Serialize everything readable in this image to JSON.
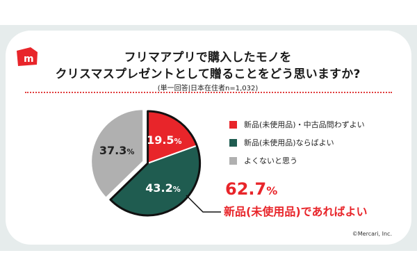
{
  "title_line1": "フリマアプリで購入したモノを",
  "title_line2": "クリスマスプレゼントとして贈ることをどう思いますか?",
  "note": "(単一回答|日本在住者n=1,032)",
  "copyright": "©Mercari, Inc.",
  "highlight": {
    "value": "62.7",
    "unit": "%",
    "text": "新品(未使用品)であればよい"
  },
  "colors": {
    "red": "#e8252a",
    "green": "#1f5c50",
    "gray": "#b0b0b0",
    "band": "#e6ecec",
    "accent": "#e8252a"
  },
  "logo_icon": "mercari-logo-icon",
  "chart_data": {
    "type": "pie",
    "slices": [
      {
        "label": "新品(未使用品)・中古品問わずよい",
        "value": 19.5,
        "display": "19.5",
        "unit": "%",
        "color": "#e8252a",
        "exploded": true
      },
      {
        "label": "新品(未使用品)ならばよい",
        "value": 43.2,
        "display": "43.2",
        "unit": "%",
        "color": "#1f5c50",
        "exploded": true
      },
      {
        "label": "よくないと思う",
        "value": 37.3,
        "display": "37.3",
        "unit": "%",
        "color": "#b0b0b0",
        "exploded": false
      }
    ]
  }
}
